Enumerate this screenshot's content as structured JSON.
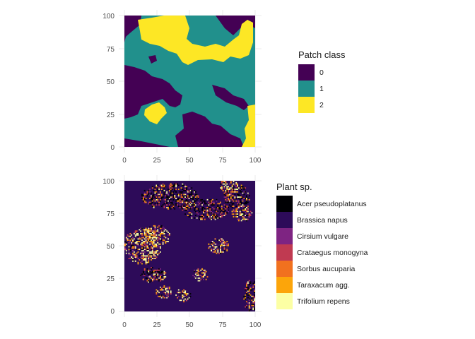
{
  "chart_data": [
    {
      "type": "heatmap",
      "title": "",
      "xlabel": "",
      "ylabel": "",
      "xlim": [
        0,
        100
      ],
      "ylim": [
        0,
        100
      ],
      "x_ticks": [
        "0",
        "25",
        "50",
        "75",
        "100"
      ],
      "y_ticks": [
        "0",
        "25",
        "50",
        "75",
        "100"
      ],
      "grid": true,
      "legend": {
        "title": "Patch class",
        "position": "right",
        "entries": [
          {
            "label": "0",
            "color": "#440154"
          },
          {
            "label": "1",
            "color": "#21908C"
          },
          {
            "label": "2",
            "color": "#FDE725"
          }
        ]
      }
    },
    {
      "type": "heatmap",
      "title": "",
      "xlabel": "",
      "ylabel": "",
      "xlim": [
        0,
        100
      ],
      "ylim": [
        0,
        100
      ],
      "x_ticks": [
        "0",
        "25",
        "50",
        "75",
        "100"
      ],
      "y_ticks": [
        "0",
        "25",
        "50",
        "75",
        "100"
      ],
      "grid": true,
      "legend": {
        "title": "Plant sp.",
        "position": "right",
        "entries": [
          {
            "label": "Acer pseudoplatanus",
            "color": "#000004"
          },
          {
            "label": "Brassica napus",
            "color": "#2D0B59"
          },
          {
            "label": "Cirsium vulgare",
            "color": "#7E2482"
          },
          {
            "label": "Crataegus monogyna",
            "color": "#C03A51"
          },
          {
            "label": "Sorbus aucuparia",
            "color": "#F1711F"
          },
          {
            "label": "Taraxacum agg.",
            "color": "#FCA50A"
          },
          {
            "label": "Trifolium repens",
            "color": "#FCFFA4"
          }
        ]
      }
    }
  ]
}
